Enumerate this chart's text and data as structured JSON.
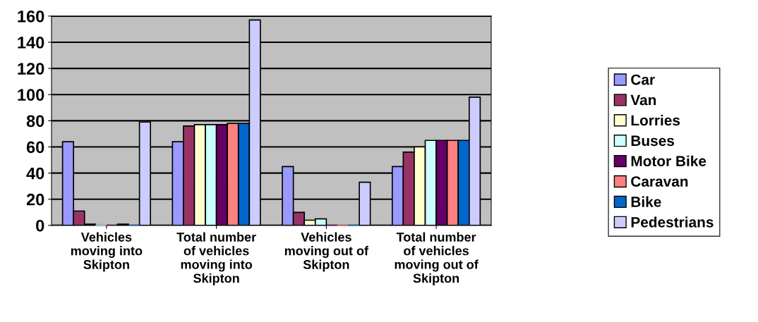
{
  "chart_data": {
    "type": "bar",
    "categories": [
      "Vehicles\nmoving into\nSkipton",
      "Total number\nof vehicles\nmoving into\nSkipton",
      "Vehicles\nmoving out of\nSkipton",
      "Total number\nof vehicles\nmoving out of\nSkipton"
    ],
    "series": [
      {
        "name": "Car",
        "color": "#9999ff",
        "values": [
          64,
          64,
          45,
          45
        ]
      },
      {
        "name": "Van",
        "color": "#993366",
        "values": [
          11,
          76,
          10,
          56
        ]
      },
      {
        "name": "Lorries",
        "color": "#ffffcc",
        "values": [
          1,
          77,
          4,
          60
        ]
      },
      {
        "name": "Buses",
        "color": "#ccffff",
        "values": [
          0,
          77,
          5,
          65
        ]
      },
      {
        "name": "Motor Bike",
        "color": "#660066",
        "values": [
          0,
          77,
          0,
          65
        ]
      },
      {
        "name": "Caravan",
        "color": "#ff8080",
        "values": [
          1,
          78,
          0,
          65
        ]
      },
      {
        "name": "Bike",
        "color": "#0066cc",
        "values": [
          0,
          78,
          0,
          65
        ]
      },
      {
        "name": "Pedestrians",
        "color": "#ccccff",
        "values": [
          79,
          157,
          33,
          98
        ]
      }
    ],
    "ylim": [
      0,
      160
    ],
    "yticks": [
      0,
      20,
      40,
      60,
      80,
      100,
      120,
      140,
      160
    ],
    "grid": "y",
    "legend": "right"
  }
}
